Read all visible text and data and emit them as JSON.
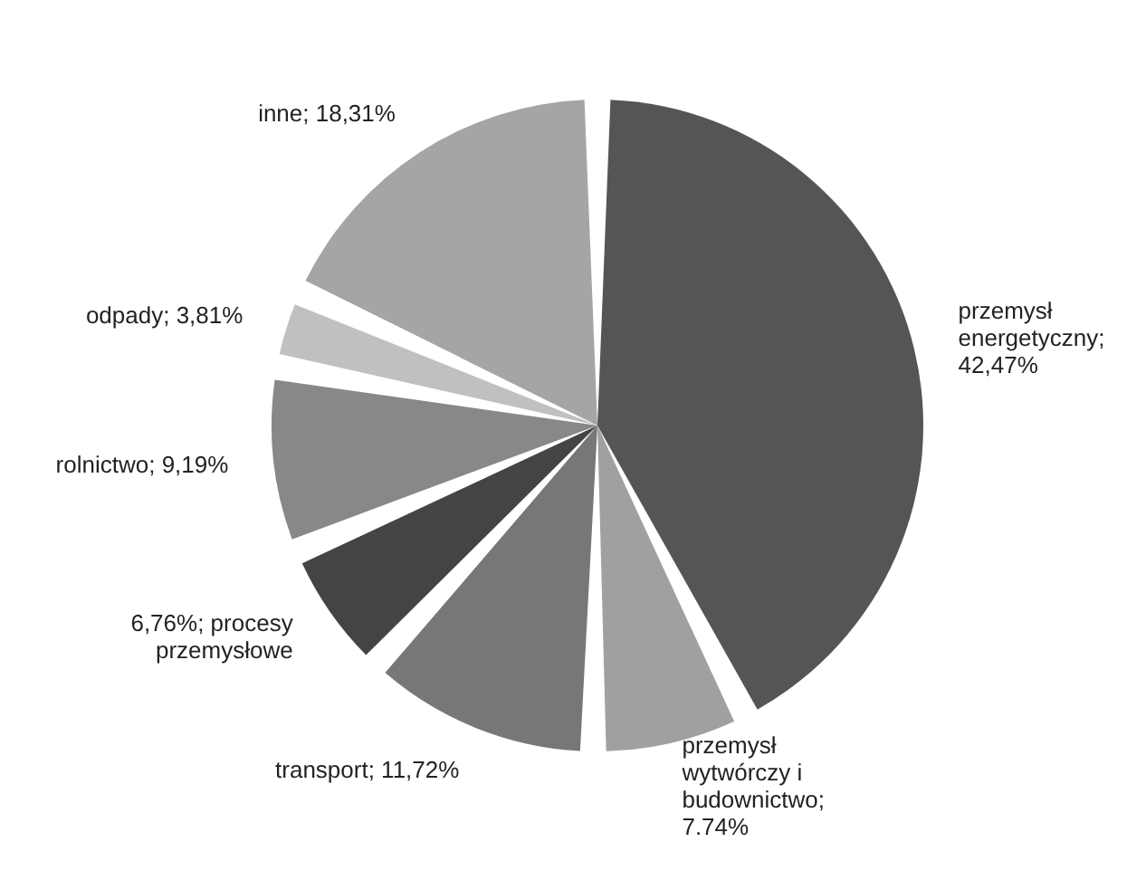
{
  "chart_data": {
    "type": "pie",
    "categories": [
      "przemysł energetyczny; 42,47%",
      "przemysł wytwórczy i budownictwo; 7.74%",
      "transport; 11,72%",
      "6,76%; procesy przemysłowe",
      "rolnictwo; 9,19%",
      "odpady; 3,81%",
      "inne; 18,31%"
    ],
    "values": [
      42.47,
      7.74,
      11.72,
      6.76,
      9.19,
      3.81,
      18.31
    ],
    "colors": [
      "#555555",
      "#a0a0a0",
      "#777777",
      "#444444",
      "#888888",
      "#c0c0c0",
      "#a5a5a5"
    ],
    "legend": false
  }
}
